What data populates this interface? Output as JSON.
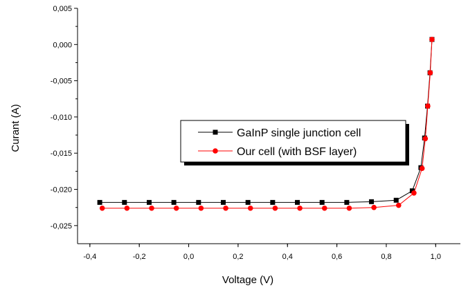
{
  "chart_data": {
    "type": "line",
    "xlabel": "Voltage (V)",
    "ylabel": "Curant (A)",
    "xlim": [
      -0.45,
      1.1
    ],
    "ylim": [
      -0.0275,
      0.005
    ],
    "x_ticks": [
      {
        "value": -0.4,
        "label": "-0,4"
      },
      {
        "value": -0.2,
        "label": "-0,2"
      },
      {
        "value": 0.0,
        "label": "0,0"
      },
      {
        "value": 0.2,
        "label": "0,2"
      },
      {
        "value": 0.4,
        "label": "0,4"
      },
      {
        "value": 0.6,
        "label": "0,6"
      },
      {
        "value": 0.8,
        "label": "0,8"
      },
      {
        "value": 1.0,
        "label": "1,0"
      }
    ],
    "y_ticks": [
      {
        "value": 0.005,
        "label": "0,005"
      },
      {
        "value": 0.0,
        "label": "0,000"
      },
      {
        "value": -0.005,
        "label": "-0,005"
      },
      {
        "value": -0.01,
        "label": "-0,010"
      },
      {
        "value": -0.015,
        "label": "-0,015"
      },
      {
        "value": -0.02,
        "label": "-0,020"
      },
      {
        "value": -0.025,
        "label": "-0,025"
      }
    ],
    "grid": false,
    "legend_position": "center",
    "series": [
      {
        "name": "GaInP single junction cell",
        "color": "#000000",
        "marker": "square",
        "x": [
          -0.36,
          -0.26,
          -0.16,
          -0.06,
          0.04,
          0.14,
          0.24,
          0.34,
          0.44,
          0.54,
          0.64,
          0.74,
          0.84,
          0.905,
          0.94,
          0.955,
          0.967,
          0.977,
          0.985
        ],
        "y": [
          -0.0218,
          -0.0218,
          -0.0218,
          -0.0218,
          -0.0218,
          -0.0218,
          -0.0218,
          -0.0218,
          -0.0218,
          -0.0218,
          -0.0218,
          -0.0217,
          -0.0215,
          -0.0202,
          -0.017,
          -0.0129,
          -0.0085,
          -0.0039,
          0.0007
        ]
      },
      {
        "name": "Our cell (with BSF layer)",
        "color": "#ff0000",
        "marker": "circle",
        "x": [
          -0.35,
          -0.25,
          -0.15,
          -0.05,
          0.05,
          0.15,
          0.25,
          0.35,
          0.45,
          0.55,
          0.65,
          0.75,
          0.85,
          0.912,
          0.945,
          0.958,
          0.968,
          0.978,
          0.985
        ],
        "y": [
          -0.0226,
          -0.0226,
          -0.0226,
          -0.0226,
          -0.0226,
          -0.0226,
          -0.0226,
          -0.0226,
          -0.0226,
          -0.0226,
          -0.0226,
          -0.0225,
          -0.0222,
          -0.0205,
          -0.0171,
          -0.013,
          -0.0085,
          -0.0039,
          0.0007
        ]
      }
    ]
  }
}
